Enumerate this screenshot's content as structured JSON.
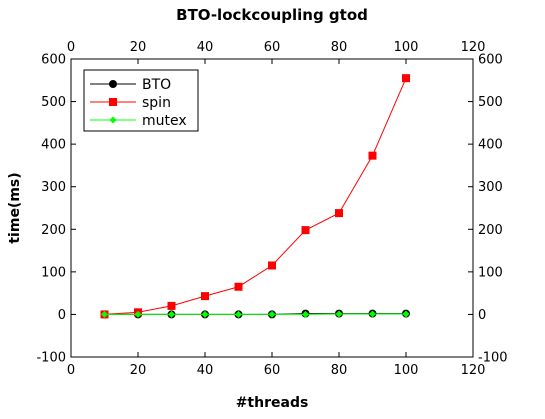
{
  "chart_data": {
    "type": "line",
    "title": "BTO-lockcoupling gtod",
    "xlabel": "#threads",
    "ylabel": "time(ms)",
    "xlim": [
      0,
      120
    ],
    "ylim": [
      -100,
      600
    ],
    "xticks": [
      "0",
      "20",
      "40",
      "60",
      "80",
      "100",
      "120"
    ],
    "yticks": [
      "-100",
      "0",
      "100",
      "200",
      "300",
      "400",
      "500",
      "600"
    ],
    "grid": false,
    "legend_position": "top-left",
    "x": [
      10,
      20,
      30,
      40,
      50,
      60,
      70,
      80,
      90,
      100
    ],
    "series": [
      {
        "name": "BTO",
        "color": "#000000",
        "marker": "circle",
        "values": [
          0,
          0,
          0,
          0,
          0,
          0,
          2,
          2,
          2,
          2
        ]
      },
      {
        "name": "spin",
        "color": "#ff0000",
        "marker": "square",
        "values": [
          0,
          5,
          20,
          43,
          65,
          115,
          198,
          238,
          373,
          555
        ]
      },
      {
        "name": "mutex",
        "color": "#00ff00",
        "marker": "diamond",
        "values": [
          0,
          0,
          0,
          0,
          0,
          0,
          0,
          1,
          1,
          1
        ]
      }
    ]
  }
}
